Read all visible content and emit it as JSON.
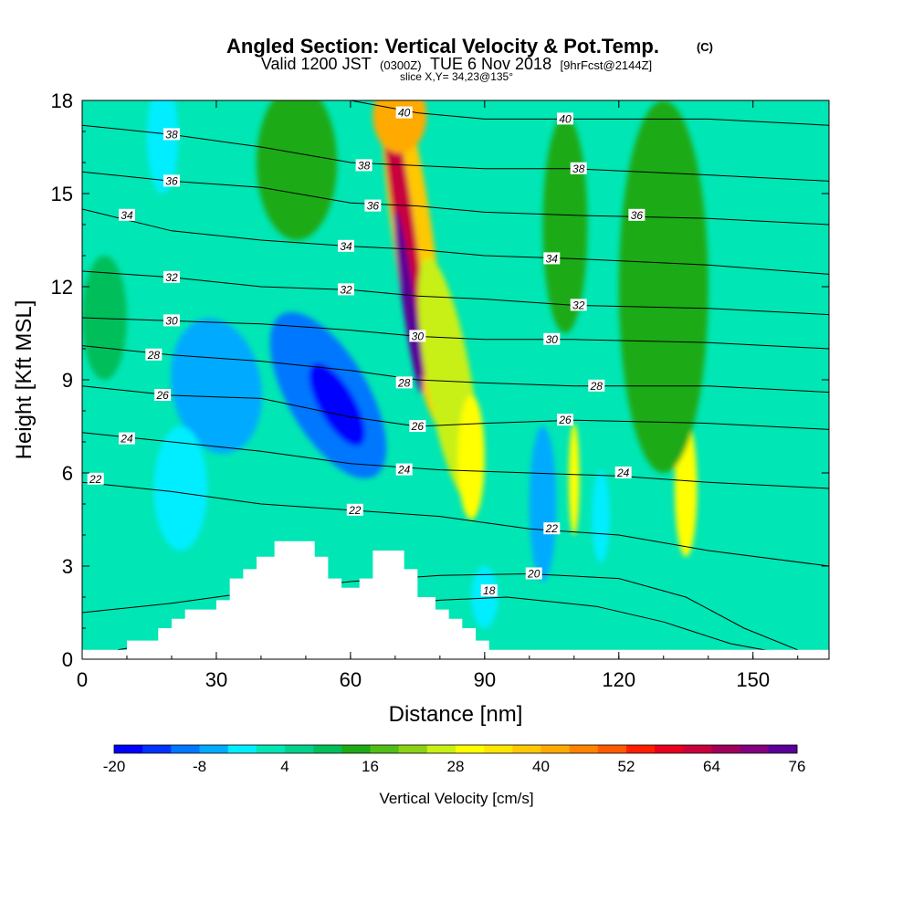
{
  "chart_data": {
    "type": "heatmap",
    "title": "Angled Section: Vertical Velocity & Pot.Temp.",
    "title_unit": "(C)",
    "subtitle_prefix": "Valid 1200 JST",
    "subtitle_utc": "(0300Z)",
    "subtitle_date": "TUE 6 Nov 2018",
    "subtitle_fcst": "[9hrFcst@2144Z]",
    "slice_label": "slice X,Y= 34,23@135°",
    "xlabel": "Distance [nm]",
    "ylabel": "Height [Kft MSL]",
    "xlim": [
      0,
      167
    ],
    "ylim": [
      0,
      18
    ],
    "x_ticks": [
      "0",
      "30",
      "60",
      "90",
      "120",
      "150"
    ],
    "y_ticks": [
      "0",
      "3",
      "6",
      "9",
      "12",
      "15",
      "18"
    ],
    "colorbar": {
      "label": "Vertical Velocity [cm/s]",
      "min": -20,
      "step": 4,
      "tick_labels": [
        "-20",
        "-8",
        "4",
        "16",
        "28",
        "40",
        "52",
        "64",
        "76"
      ],
      "colors": [
        "#0000ff",
        "#0033ff",
        "#0077ff",
        "#00aaff",
        "#00eeff",
        "#00e6b4",
        "#00d28c",
        "#00be5a",
        "#1eaa14",
        "#50be14",
        "#8cd214",
        "#c8f014",
        "#ffff00",
        "#ffe600",
        "#ffc800",
        "#ffaa00",
        "#ff8200",
        "#ff5a00",
        "#ff1e00",
        "#e6001e",
        "#c8003c",
        "#a0005a",
        "#82007d",
        "#5a0096"
      ]
    },
    "theta_isotherms": [
      {
        "label": "18",
        "pts": [
          [
            8,
            0.3
          ],
          [
            20,
            0.6
          ],
          [
            40,
            1.1
          ],
          [
            60,
            1.6
          ],
          [
            80,
            1.9
          ],
          [
            95,
            2.0
          ],
          [
            115,
            1.7
          ],
          [
            130,
            1.2
          ],
          [
            145,
            0.5
          ],
          [
            160,
            0.1
          ]
        ]
      },
      {
        "label": "20",
        "pts": [
          [
            0,
            1.5
          ],
          [
            20,
            1.8
          ],
          [
            40,
            2.2
          ],
          [
            60,
            2.5
          ],
          [
            80,
            2.7
          ],
          [
            100,
            2.75
          ],
          [
            120,
            2.6
          ],
          [
            135,
            2.0
          ],
          [
            148,
            1.0
          ],
          [
            160,
            0.3
          ]
        ]
      },
      {
        "label": "22",
        "pts": [
          [
            0,
            5.7
          ],
          [
            20,
            5.4
          ],
          [
            40,
            5.0
          ],
          [
            60,
            4.8
          ],
          [
            80,
            4.6
          ],
          [
            100,
            4.2
          ],
          [
            120,
            4.0
          ],
          [
            140,
            3.5
          ],
          [
            167,
            3.0
          ]
        ]
      },
      {
        "label": "24",
        "pts": [
          [
            0,
            7.3
          ],
          [
            20,
            7.0
          ],
          [
            40,
            6.7
          ],
          [
            60,
            6.3
          ],
          [
            80,
            6.1
          ],
          [
            100,
            6.0
          ],
          [
            120,
            5.9
          ],
          [
            140,
            5.7
          ],
          [
            167,
            5.5
          ]
        ]
      },
      {
        "label": "26",
        "pts": [
          [
            0,
            8.8
          ],
          [
            20,
            8.5
          ],
          [
            40,
            8.4
          ],
          [
            60,
            7.8
          ],
          [
            75,
            7.5
          ],
          [
            90,
            7.6
          ],
          [
            110,
            7.7
          ],
          [
            140,
            7.6
          ],
          [
            167,
            7.4
          ]
        ]
      },
      {
        "label": "28",
        "pts": [
          [
            0,
            10.1
          ],
          [
            20,
            9.8
          ],
          [
            40,
            9.6
          ],
          [
            60,
            9.3
          ],
          [
            75,
            9.0
          ],
          [
            90,
            8.9
          ],
          [
            110,
            8.8
          ],
          [
            140,
            8.8
          ],
          [
            167,
            8.6
          ]
        ]
      },
      {
        "label": "30",
        "pts": [
          [
            0,
            11.0
          ],
          [
            20,
            10.9
          ],
          [
            40,
            10.8
          ],
          [
            60,
            10.6
          ],
          [
            75,
            10.4
          ],
          [
            90,
            10.3
          ],
          [
            110,
            10.3
          ],
          [
            140,
            10.2
          ],
          [
            167,
            10.0
          ]
        ]
      },
      {
        "label": "32",
        "pts": [
          [
            0,
            12.5
          ],
          [
            20,
            12.3
          ],
          [
            40,
            12.0
          ],
          [
            60,
            11.9
          ],
          [
            75,
            11.7
          ],
          [
            90,
            11.6
          ],
          [
            110,
            11.4
          ],
          [
            140,
            11.3
          ],
          [
            167,
            11.1
          ]
        ]
      },
      {
        "label": "34",
        "pts": [
          [
            0,
            14.5
          ],
          [
            20,
            13.8
          ],
          [
            40,
            13.5
          ],
          [
            60,
            13.3
          ],
          [
            75,
            13.2
          ],
          [
            90,
            13.0
          ],
          [
            110,
            12.9
          ],
          [
            140,
            12.7
          ],
          [
            167,
            12.4
          ]
        ]
      },
      {
        "label": "36",
        "pts": [
          [
            0,
            15.7
          ],
          [
            20,
            15.4
          ],
          [
            40,
            15.2
          ],
          [
            60,
            14.7
          ],
          [
            75,
            14.6
          ],
          [
            90,
            14.4
          ],
          [
            110,
            14.3
          ],
          [
            140,
            14.2
          ],
          [
            167,
            14.0
          ]
        ]
      },
      {
        "label": "38",
        "pts": [
          [
            0,
            17.2
          ],
          [
            20,
            16.9
          ],
          [
            40,
            16.5
          ],
          [
            60,
            16.0
          ],
          [
            75,
            15.9
          ],
          [
            90,
            15.8
          ],
          [
            110,
            15.8
          ],
          [
            140,
            15.6
          ],
          [
            167,
            15.4
          ]
        ]
      },
      {
        "label": "40",
        "pts": [
          [
            60,
            18.0
          ],
          [
            75,
            17.6
          ],
          [
            90,
            17.4
          ],
          [
            110,
            17.4
          ],
          [
            140,
            17.4
          ],
          [
            167,
            17.2
          ]
        ]
      }
    ],
    "isotherm_labels": [
      {
        "text": "38",
        "x": 20,
        "y": 16.9
      },
      {
        "text": "36",
        "x": 20,
        "y": 15.4
      },
      {
        "text": "34",
        "x": 10,
        "y": 14.3
      },
      {
        "text": "32",
        "x": 20,
        "y": 12.3
      },
      {
        "text": "30",
        "x": 20,
        "y": 10.9
      },
      {
        "text": "28",
        "x": 16,
        "y": 9.8
      },
      {
        "text": "26",
        "x": 18,
        "y": 8.5
      },
      {
        "text": "24",
        "x": 10,
        "y": 7.1
      },
      {
        "text": "22",
        "x": 3,
        "y": 5.8
      },
      {
        "text": "40",
        "x": 72,
        "y": 17.6
      },
      {
        "text": "38",
        "x": 63,
        "y": 15.9
      },
      {
        "text": "36",
        "x": 65,
        "y": 14.6
      },
      {
        "text": "34",
        "x": 59,
        "y": 13.3
      },
      {
        "text": "32",
        "x": 59,
        "y": 11.9
      },
      {
        "text": "30",
        "x": 75,
        "y": 10.4
      },
      {
        "text": "28",
        "x": 72,
        "y": 8.9
      },
      {
        "text": "26",
        "x": 75,
        "y": 7.5
      },
      {
        "text": "24",
        "x": 72,
        "y": 6.1
      },
      {
        "text": "22",
        "x": 61,
        "y": 4.8
      },
      {
        "text": "40",
        "x": 108,
        "y": 17.4
      },
      {
        "text": "38",
        "x": 111,
        "y": 15.8
      },
      {
        "text": "36",
        "x": 124,
        "y": 14.3
      },
      {
        "text": "34",
        "x": 105,
        "y": 12.9
      },
      {
        "text": "32",
        "x": 111,
        "y": 11.4
      },
      {
        "text": "30",
        "x": 105,
        "y": 10.3
      },
      {
        "text": "28",
        "x": 115,
        "y": 8.8
      },
      {
        "text": "26",
        "x": 108,
        "y": 7.7
      },
      {
        "text": "24",
        "x": 121,
        "y": 6.0
      },
      {
        "text": "22",
        "x": 105,
        "y": 4.2
      },
      {
        "text": "20",
        "x": 101,
        "y": 2.75
      },
      {
        "text": "18",
        "x": 91,
        "y": 2.2
      }
    ],
    "terrain": [
      [
        0,
        0.3
      ],
      [
        10,
        0.3
      ],
      [
        10,
        0.6
      ],
      [
        17,
        0.6
      ],
      [
        17,
        1.0
      ],
      [
        20,
        1.0
      ],
      [
        20,
        1.3
      ],
      [
        23,
        1.3
      ],
      [
        23,
        1.6
      ],
      [
        30,
        1.6
      ],
      [
        30,
        1.9
      ],
      [
        33,
        1.9
      ],
      [
        33,
        2.6
      ],
      [
        36,
        2.6
      ],
      [
        36,
        2.9
      ],
      [
        39,
        2.9
      ],
      [
        39,
        3.3
      ],
      [
        43,
        3.3
      ],
      [
        43,
        3.8
      ],
      [
        52,
        3.8
      ],
      [
        52,
        3.3
      ],
      [
        55,
        3.3
      ],
      [
        55,
        2.6
      ],
      [
        58,
        2.6
      ],
      [
        58,
        2.3
      ],
      [
        62,
        2.3
      ],
      [
        62,
        2.6
      ],
      [
        65,
        2.6
      ],
      [
        65,
        3.5
      ],
      [
        72,
        3.5
      ],
      [
        72,
        2.9
      ],
      [
        75,
        2.9
      ],
      [
        75,
        2.0
      ],
      [
        79,
        2.0
      ],
      [
        79,
        1.6
      ],
      [
        82,
        1.6
      ],
      [
        82,
        1.3
      ],
      [
        85,
        1.3
      ],
      [
        85,
        1.0
      ],
      [
        88,
        1.0
      ],
      [
        88,
        0.6
      ],
      [
        91,
        0.6
      ],
      [
        91,
        0.3
      ],
      [
        167,
        0.3
      ]
    ],
    "w_features": [
      {
        "x": 74,
        "y": 13.5,
        "rx": 4.5,
        "ry": 6,
        "w": 36,
        "r": -8
      },
      {
        "x": 72,
        "y": 14,
        "rx": 2.2,
        "ry": 5,
        "w": 60,
        "r": -8
      },
      {
        "x": 73,
        "y": 11.5,
        "rx": 1.4,
        "ry": 3,
        "w": 76,
        "r": -8
      },
      {
        "x": 71,
        "y": 17.5,
        "rx": 6,
        "ry": 1.2,
        "w": 40,
        "r": 0
      },
      {
        "x": 82,
        "y": 9,
        "rx": 5,
        "ry": 4,
        "w": 24,
        "r": -10
      },
      {
        "x": 87,
        "y": 6.5,
        "rx": 3,
        "ry": 2,
        "w": 28,
        "r": 0
      },
      {
        "x": 48,
        "y": 16,
        "rx": 9,
        "ry": 2.5,
        "w": 14,
        "r": 0
      },
      {
        "x": 108,
        "y": 14,
        "rx": 5,
        "ry": 3.5,
        "w": 14,
        "r": 0
      },
      {
        "x": 110,
        "y": 5.8,
        "rx": 1.2,
        "ry": 1.8,
        "w": 28,
        "r": 0
      },
      {
        "x": 135,
        "y": 5.5,
        "rx": 2.5,
        "ry": 2.2,
        "w": 30,
        "r": 0
      },
      {
        "x": 130,
        "y": 12,
        "rx": 10,
        "ry": 6,
        "w": 14,
        "r": 0
      },
      {
        "x": 5,
        "y": 11,
        "rx": 5,
        "ry": 2,
        "w": 10,
        "r": 0
      },
      {
        "x": 55,
        "y": 8.5,
        "rx": 9,
        "ry": 3,
        "w": -12,
        "r": -30
      },
      {
        "x": 57,
        "y": 8.2,
        "rx": 4,
        "ry": 1.5,
        "w": -18,
        "r": -30
      },
      {
        "x": 30,
        "y": 8.8,
        "rx": 10,
        "ry": 2.2,
        "w": -8,
        "r": -10
      },
      {
        "x": 18,
        "y": 16.8,
        "rx": 3.5,
        "ry": 1.8,
        "w": -4,
        "r": 0
      },
      {
        "x": 103,
        "y": 5,
        "rx": 3,
        "ry": 2.5,
        "w": -6,
        "r": 0
      },
      {
        "x": 116,
        "y": 4.6,
        "rx": 2,
        "ry": 1.5,
        "w": -4,
        "r": 0
      },
      {
        "x": 90,
        "y": 2,
        "rx": 3,
        "ry": 1,
        "w": -4,
        "r": 0
      },
      {
        "x": 22,
        "y": 5.5,
        "rx": 6,
        "ry": 2,
        "w": -4,
        "r": 0
      }
    ]
  }
}
